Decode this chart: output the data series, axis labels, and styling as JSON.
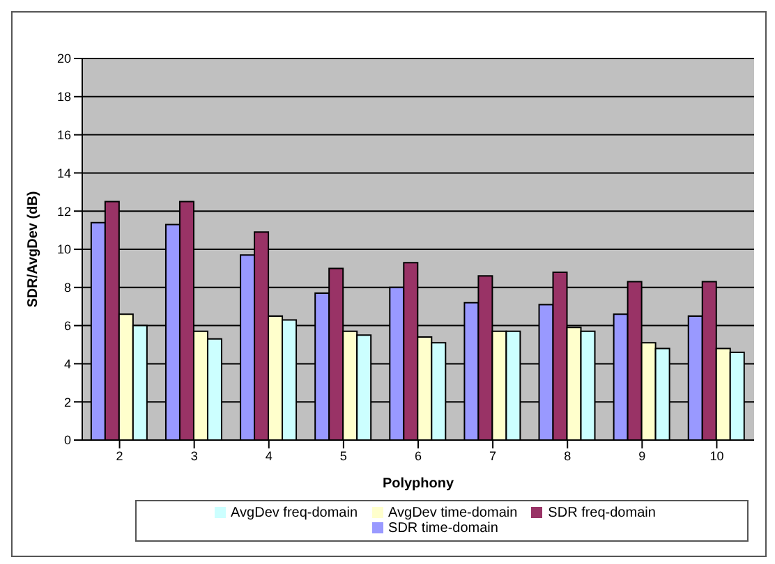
{
  "chart_data": {
    "type": "bar",
    "xlabel": "Polyphony",
    "ylabel": "SDR/AvgDev (dB)",
    "categories": [
      "2",
      "3",
      "4",
      "5",
      "6",
      "7",
      "8",
      "9",
      "10"
    ],
    "series": [
      {
        "name": "SDR time-domain",
        "color": "#9999ff",
        "values": [
          11.4,
          11.3,
          9.7,
          7.7,
          8.0,
          7.2,
          7.1,
          6.6,
          6.5
        ]
      },
      {
        "name": "SDR freq-domain",
        "color": "#993366",
        "values": [
          12.5,
          12.5,
          10.9,
          9.0,
          9.3,
          8.6,
          8.8,
          8.3,
          8.3
        ]
      },
      {
        "name": "AvgDev time-domain",
        "color": "#ffffcc",
        "values": [
          6.6,
          5.7,
          6.5,
          5.7,
          5.4,
          5.7,
          5.9,
          5.1,
          4.8
        ]
      },
      {
        "name": "AvgDev freq-domain",
        "color": "#ccffff",
        "values": [
          6.0,
          5.3,
          6.3,
          5.5,
          5.1,
          5.7,
          5.7,
          4.8,
          4.6
        ]
      }
    ],
    "ylim": [
      0,
      20
    ],
    "yticks": [
      0,
      2,
      4,
      6,
      8,
      10,
      12,
      14,
      16,
      18,
      20
    ],
    "grid": "y",
    "legend": "bottom"
  }
}
